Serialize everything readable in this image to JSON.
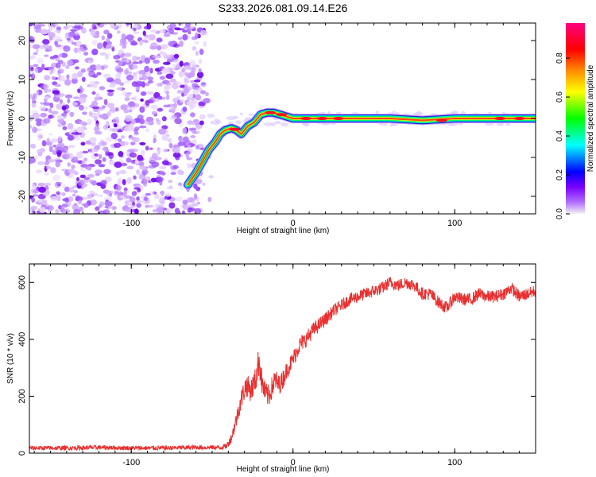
{
  "title": "S233.2026.081.09.14.E26",
  "colorbar": {
    "label": "Normalized spectral amplitude",
    "ticks": [
      "0.0",
      "0.2",
      "0.4",
      "0.6",
      "0.8"
    ],
    "tick_values": [
      0.0,
      0.2,
      0.4,
      0.6,
      0.8
    ],
    "range": [
      0,
      0.98
    ],
    "colors": [
      "#f0f0f0",
      "#7b00ff",
      "#0000ff",
      "#00ffff",
      "#00ff00",
      "#ffff00",
      "#ff8000",
      "#ff0000",
      "#ff0080"
    ]
  },
  "chart_data": [
    {
      "type": "heatmap",
      "xlabel": "Height of straight line (km)",
      "ylabel": "Frequency (Hz)",
      "xlim": [
        -163,
        150
      ],
      "ylim": [
        -24.5,
        24.5
      ],
      "xticks": [
        -100,
        0,
        100
      ],
      "xtick_labels": [
        "-100",
        "0",
        "100"
      ],
      "yticks": [
        -20,
        -10,
        0,
        10,
        20
      ],
      "ytick_labels": [
        "-20",
        "-10",
        "0",
        "10",
        "20"
      ],
      "noise_region_x": [
        -163,
        -50
      ],
      "ridge": {
        "x": [
          -65,
          -60,
          -56,
          -52,
          -48,
          -45,
          -42,
          -38,
          -35,
          -32,
          -28,
          -24,
          -20,
          -16,
          -12,
          -8,
          -4,
          0,
          20,
          40,
          60,
          80,
          100,
          120,
          140,
          150
        ],
        "y": [
          -17,
          -14,
          -11,
          -8,
          -6,
          -4,
          -3,
          -2.5,
          -3,
          -4,
          -2,
          -1,
          1,
          1.5,
          1.5,
          1,
          0.5,
          0,
          0,
          0,
          0,
          -0.5,
          0,
          0,
          0,
          0
        ]
      }
    },
    {
      "type": "line",
      "xlabel": "Height of straight line (km)",
      "ylabel": "SNR (10 * v/v)",
      "xlim": [
        -163,
        150
      ],
      "ylim": [
        0,
        665
      ],
      "xticks": [
        -100,
        0,
        100
      ],
      "xtick_labels": [
        "-100",
        "0",
        "100"
      ],
      "yticks": [
        0,
        200,
        400,
        600
      ],
      "ytick_labels": [
        "0",
        "200",
        "400",
        "600"
      ],
      "series": [
        {
          "name": "SNR",
          "color": "#e83030",
          "x": [
            -163,
            -140,
            -120,
            -100,
            -80,
            -60,
            -45,
            -41,
            -38,
            -35,
            -32,
            -29,
            -26,
            -23,
            -21,
            -19,
            -17,
            -15,
            -13,
            -11,
            -9,
            -7,
            -4,
            0,
            4,
            8,
            12,
            16,
            20,
            25,
            30,
            35,
            40,
            45,
            50,
            55,
            60,
            65,
            70,
            75,
            80,
            85,
            90,
            95,
            100,
            105,
            110,
            115,
            120,
            125,
            130,
            135,
            140,
            145,
            150
          ],
          "mean": [
            18,
            18,
            20,
            18,
            18,
            20,
            20,
            25,
            55,
            120,
            190,
            240,
            220,
            260,
            330,
            240,
            210,
            200,
            230,
            260,
            240,
            250,
            290,
            330,
            380,
            400,
            430,
            450,
            470,
            500,
            520,
            540,
            550,
            560,
            570,
            580,
            600,
            590,
            600,
            590,
            560,
            560,
            530,
            510,
            550,
            540,
            540,
            560,
            550,
            550,
            560,
            580,
            550,
            560,
            570
          ],
          "noise": [
            8,
            8,
            8,
            8,
            8,
            8,
            8,
            10,
            18,
            28,
            35,
            40,
            40,
            45,
            55,
            45,
            40,
            40,
            40,
            40,
            35,
            35,
            30,
            30,
            30,
            28,
            28,
            25,
            25,
            22,
            22,
            22,
            22,
            22,
            22,
            22,
            22,
            22,
            22,
            22,
            22,
            22,
            22,
            22,
            22,
            22,
            22,
            22,
            22,
            22,
            22,
            22,
            22,
            22,
            22
          ]
        }
      ]
    }
  ]
}
